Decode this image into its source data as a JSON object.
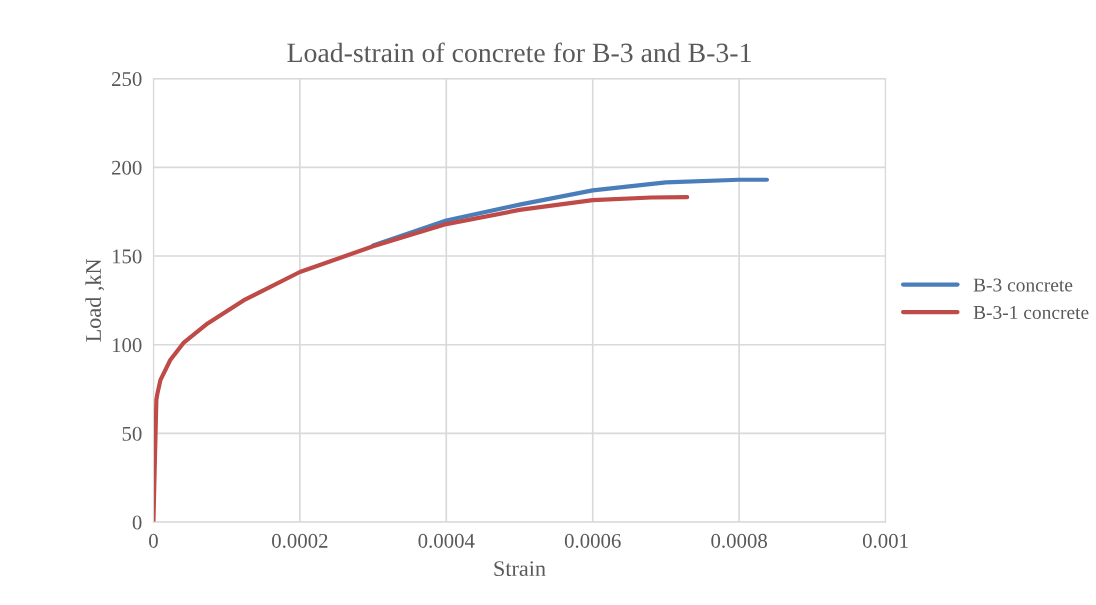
{
  "chart_data": {
    "type": "line",
    "title": "Load-strain of concrete for B-3 and B-3-1",
    "xlabel": "Strain",
    "ylabel": "Load ,kN",
    "xlim": [
      0,
      0.001
    ],
    "xticks": [
      0,
      0.0002,
      0.0004,
      0.0006,
      0.0008,
      0.001
    ],
    "ylim": [
      0,
      250
    ],
    "yticks": [
      0,
      50,
      100,
      150,
      200,
      250
    ],
    "grid": true,
    "legend": "right",
    "marker": "none",
    "series": [
      {
        "name": "B-3 concrete",
        "color": "#4a7ebb",
        "x": [
          0.0003,
          0.00035,
          0.0004,
          0.0005,
          0.0006,
          0.0007,
          0.0008,
          0.000838
        ],
        "values": [
          156,
          163,
          170,
          179,
          187,
          191.5,
          193,
          193
        ]
      },
      {
        "name": "B-3-1 concrete",
        "color": "#be4b48",
        "x": [
          0,
          2e-06,
          4e-06,
          5.5e-06,
          9.5e-06,
          2.3e-05,
          4.1e-05,
          7.4e-05,
          0.000123,
          0.0002,
          0.0003,
          0.0004,
          0.0005,
          0.0006,
          0.00068,
          0.000729
        ],
        "values": [
          0,
          35,
          69,
          72.6,
          80,
          91.4,
          101,
          112,
          125,
          141,
          155.5,
          168,
          176,
          181.5,
          183,
          183.2
        ]
      }
    ]
  }
}
